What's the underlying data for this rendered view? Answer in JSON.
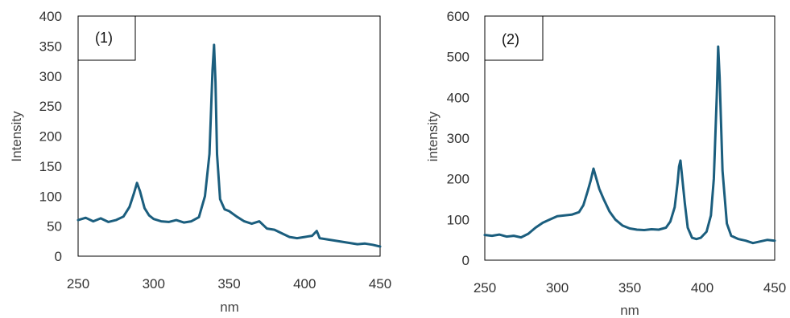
{
  "chart_data": [
    {
      "type": "line",
      "panel_label": "(1)",
      "xlabel": "nm",
      "ylabel": "Intensity",
      "xlim": [
        250,
        450
      ],
      "ylim": [
        0,
        400
      ],
      "xticks": [
        250,
        300,
        350,
        400,
        450
      ],
      "yticks": [
        0,
        50,
        100,
        150,
        200,
        250,
        300,
        350,
        400
      ],
      "grid": false,
      "color": "#1b5e7e",
      "series": [
        {
          "x": [
            250,
            255,
            260,
            265,
            270,
            275,
            280,
            284,
            287,
            289,
            291,
            294,
            297,
            300,
            305,
            310,
            315,
            320,
            325,
            330,
            334,
            337,
            339,
            340,
            341,
            342,
            344,
            347,
            350,
            355,
            360,
            365,
            370,
            375,
            380,
            385,
            390,
            395,
            400,
            405,
            408,
            410,
            415,
            420,
            425,
            430,
            435,
            440,
            445,
            450
          ],
          "y": [
            60,
            64,
            58,
            63,
            57,
            60,
            66,
            82,
            105,
            122,
            108,
            80,
            68,
            62,
            58,
            57,
            60,
            56,
            58,
            65,
            100,
            170,
            310,
            352,
            290,
            170,
            95,
            78,
            75,
            66,
            58,
            54,
            58,
            46,
            44,
            38,
            32,
            30,
            32,
            34,
            42,
            30,
            28,
            26,
            24,
            22,
            20,
            21,
            19,
            16
          ]
        }
      ]
    },
    {
      "type": "line",
      "panel_label": "(2)",
      "xlabel": "nm",
      "ylabel": "intensity",
      "xlim": [
        250,
        450
      ],
      "ylim": [
        0,
        600
      ],
      "xticks": [
        250,
        300,
        350,
        400,
        450
      ],
      "yticks": [
        0,
        100,
        200,
        300,
        400,
        500,
        600
      ],
      "grid": false,
      "color": "#1b5e7e",
      "series": [
        {
          "x": [
            250,
            255,
            260,
            265,
            270,
            275,
            280,
            285,
            290,
            295,
            300,
            305,
            310,
            315,
            318,
            321,
            323,
            325,
            327,
            329,
            332,
            336,
            340,
            345,
            350,
            355,
            360,
            365,
            370,
            375,
            378,
            381,
            383,
            384,
            385,
            386,
            388,
            390,
            393,
            396,
            399,
            403,
            406,
            408,
            410,
            411,
            412,
            414,
            417,
            420,
            425,
            430,
            435,
            440,
            445,
            450
          ],
          "y": [
            62,
            60,
            63,
            58,
            60,
            56,
            65,
            80,
            92,
            100,
            108,
            110,
            112,
            118,
            135,
            170,
            195,
            225,
            200,
            175,
            150,
            120,
            100,
            85,
            78,
            75,
            74,
            76,
            75,
            80,
            95,
            130,
            190,
            230,
            245,
            210,
            140,
            80,
            55,
            52,
            55,
            70,
            110,
            200,
            400,
            525,
            450,
            220,
            90,
            60,
            52,
            48,
            42,
            46,
            50,
            48
          ]
        }
      ]
    }
  ]
}
